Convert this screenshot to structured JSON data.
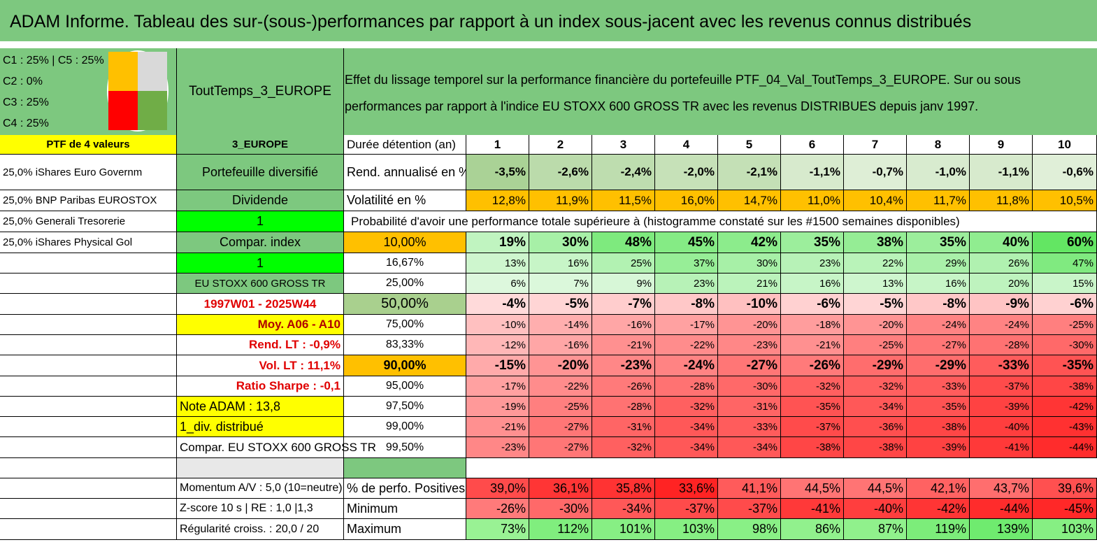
{
  "title": "ADAM Informe. Tableau des sur-(sous-)performances par rapport à un index sous-jacent avec les revenus connus distribués",
  "colors": {
    "green_header": "#7dc87f",
    "yellow": "#ffff00",
    "lime": "#00ff00",
    "orange": "#ffc000",
    "pie_orange": "#ffc000",
    "pie_grey": "#d9d9d9",
    "pie_red": "#ff0000",
    "pie_green": "#70ad47"
  },
  "legend": [
    "C1 : 25% | C5 : 25%",
    "C2 : 0%",
    "C3 : 25%",
    "C4 : 25%"
  ],
  "pie": [
    {
      "label": "C1",
      "value": 25,
      "color": "#ffc000"
    },
    {
      "label": "C5",
      "value": 25,
      "color": "#d9d9d9"
    },
    {
      "label": "C3",
      "value": 25,
      "color": "#ff0000"
    },
    {
      "label": "C4",
      "value": 25,
      "color": "#70ad47"
    }
  ],
  "portfolio_name": "ToutTemps_3_EUROPE",
  "heading": "Effet du lissage temporel sur la performance financière du portefeuille PTF_04_Val_ToutTemps_3_EUROPE. Sur ou sous performances par rapport à l'indice EU STOXX 600 GROSS TR avec les revenus DISTRIBUES depuis janv 1997.",
  "ptf_label": "PTF de 4 valeurs",
  "zone": "3_EUROPE",
  "duree_label": "Durée détention (an)",
  "years": [
    "1",
    "2",
    "3",
    "4",
    "5",
    "6",
    "7",
    "8",
    "9",
    "10"
  ],
  "holdings": [
    "25,0% iShares Euro Governm",
    "25,0% BNP Paribas EUROSTOX",
    "25,0% Generali Tresorerie",
    "25,0% iShares Physical Gol"
  ],
  "col2": {
    "diversifie": "Portefeuille diversifié",
    "dividende": "Dividende",
    "one_a": "1",
    "compar_index": "Compar. index",
    "one_b": "1",
    "index_name": "EU STOXX 600 GROSS TR",
    "period": "1997W01 - 2025W44",
    "moy": "Moy. A06 - A10",
    "rend_lt": "Rend. LT : -0,9%",
    "vol_lt": "Vol. LT : 11,1%",
    "sharpe": "Ratio Sharpe : -0,1",
    "note": "Note ADAM : 13,8",
    "div": "1_div. distribué",
    "compar": "Compar. EU STOXX 600 GROSS TR",
    "momentum": "Momentum A/V : 5,0 (10=neutre)",
    "zscore": "Z-score 10 s | RE : 1,0 |1,3",
    "regularite": "Régularité croiss. : 20,0 / 20"
  },
  "rend": {
    "label": "Rend. annualisé en %",
    "values": [
      "-3,5%",
      "-2,6%",
      "-2,4%",
      "-2,0%",
      "-2,1%",
      "-1,1%",
      "-0,7%",
      "-1,0%",
      "-1,1%",
      "-0,6%"
    ]
  },
  "vol": {
    "label": "Volatilité en %",
    "values": [
      "12,8%",
      "11,9%",
      "11,5%",
      "16,0%",
      "14,7%",
      "11,0%",
      "10,4%",
      "11,7%",
      "11,8%",
      "10,5%"
    ]
  },
  "proba_label": "Probabilité d'avoir une performance totale supérieure à (histogramme constaté sur les #1500 semaines disponibles)",
  "quantiles": [
    {
      "label": "10,00%",
      "values": [
        "19%",
        "30%",
        "48%",
        "45%",
        "42%",
        "35%",
        "38%",
        "35%",
        "40%",
        "60%"
      ]
    },
    {
      "label": "16,67%",
      "values": [
        "13%",
        "16%",
        "25%",
        "37%",
        "30%",
        "23%",
        "22%",
        "29%",
        "26%",
        "47%"
      ]
    },
    {
      "label": "25,00%",
      "values": [
        "6%",
        "7%",
        "9%",
        "23%",
        "21%",
        "16%",
        "13%",
        "16%",
        "20%",
        "15%"
      ]
    },
    {
      "label": "50,00%",
      "values": [
        "-4%",
        "-5%",
        "-7%",
        "-8%",
        "-10%",
        "-6%",
        "-5%",
        "-8%",
        "-9%",
        "-6%"
      ]
    },
    {
      "label": "75,00%",
      "values": [
        "-10%",
        "-14%",
        "-16%",
        "-17%",
        "-20%",
        "-18%",
        "-20%",
        "-24%",
        "-24%",
        "-25%"
      ]
    },
    {
      "label": "83,33%",
      "values": [
        "-12%",
        "-16%",
        "-21%",
        "-22%",
        "-23%",
        "-21%",
        "-25%",
        "-27%",
        "-28%",
        "-30%"
      ]
    },
    {
      "label": "90,00%",
      "values": [
        "-15%",
        "-20%",
        "-23%",
        "-24%",
        "-27%",
        "-26%",
        "-29%",
        "-29%",
        "-33%",
        "-35%"
      ]
    },
    {
      "label": "95,00%",
      "values": [
        "-17%",
        "-22%",
        "-26%",
        "-28%",
        "-30%",
        "-32%",
        "-32%",
        "-33%",
        "-37%",
        "-38%"
      ]
    },
    {
      "label": "97,50%",
      "values": [
        "-19%",
        "-25%",
        "-28%",
        "-32%",
        "-31%",
        "-35%",
        "-34%",
        "-35%",
        "-39%",
        "-42%"
      ]
    },
    {
      "label": "99,00%",
      "values": [
        "-21%",
        "-27%",
        "-31%",
        "-34%",
        "-33%",
        "-37%",
        "-36%",
        "-38%",
        "-40%",
        "-43%"
      ]
    },
    {
      "label": "99,50%",
      "values": [
        "-23%",
        "-27%",
        "-32%",
        "-34%",
        "-34%",
        "-38%",
        "-38%",
        "-39%",
        "-41%",
        "-44%"
      ]
    }
  ],
  "positives": {
    "label": "% de perfo. Positives",
    "values": [
      "39,0%",
      "36,1%",
      "35,8%",
      "33,6%",
      "41,1%",
      "44,5%",
      "44,5%",
      "42,1%",
      "43,7%",
      "39,6%"
    ]
  },
  "minimum": {
    "label": "Minimum",
    "values": [
      "-26%",
      "-30%",
      "-34%",
      "-37%",
      "-37%",
      "-41%",
      "-40%",
      "-42%",
      "-44%",
      "-45%"
    ]
  },
  "maximum": {
    "label": "Maximum",
    "values": [
      "73%",
      "112%",
      "101%",
      "103%",
      "98%",
      "86%",
      "87%",
      "119%",
      "139%",
      "103%"
    ]
  }
}
